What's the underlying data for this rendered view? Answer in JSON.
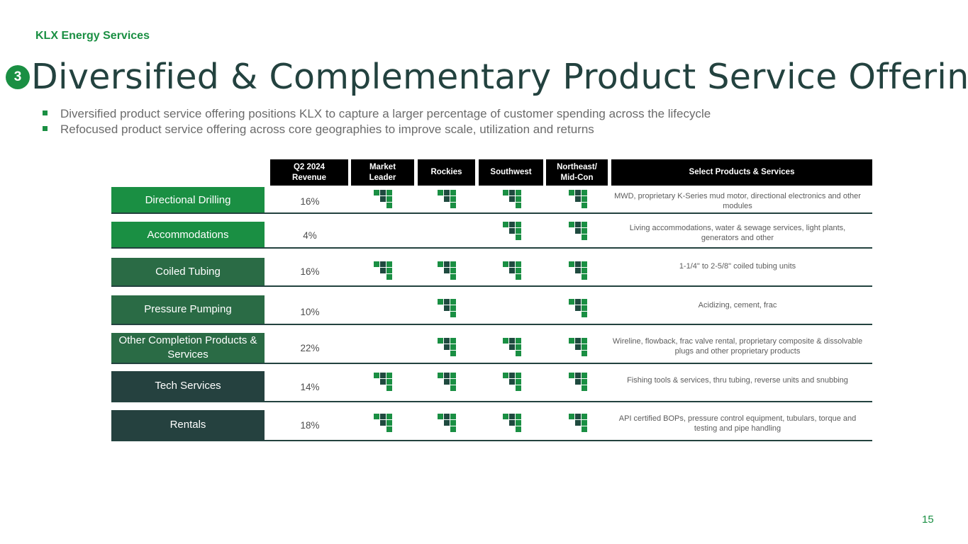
{
  "header": {
    "brand": "KLX Energy Services",
    "section_number": "3",
    "title": "Diversified & Complementary Product Service Offering"
  },
  "bullets": [
    "Diversified product service offering positions KLX to capture a larger percentage of customer spending across the lifecycle",
    "Refocused product service offering across core geographies to improve scale, utilization and returns"
  ],
  "table": {
    "columns": {
      "revenue": "Q2 2024\nRevenue",
      "market_leader": "Market\nLeader",
      "rockies": "Rockies",
      "southwest": "Southwest",
      "northeast": "Northeast/\nMid-Con",
      "products": "Select Products & Services"
    },
    "rows": [
      {
        "label": "Directional Drilling",
        "color": "#1a8f43",
        "revenue": "16%",
        "market_leader": true,
        "rockies": true,
        "southwest": true,
        "northeast": true,
        "products": "MWD, proprietary K-Series mud motor, directional electronics and other modules"
      },
      {
        "label": "Accommodations",
        "color": "#1a8f43",
        "revenue": "4%",
        "market_leader": false,
        "rockies": false,
        "southwest": true,
        "northeast": true,
        "products": "Living accommodations, water & sewage services, light plants, generators and other"
      },
      {
        "label": "Coiled Tubing",
        "color": "#2a6b45",
        "revenue": "16%",
        "market_leader": true,
        "rockies": true,
        "southwest": true,
        "northeast": true,
        "products": "1-1/4\" to 2-5/8\" coiled tubing units"
      },
      {
        "label": "Pressure Pumping",
        "color": "#2a6b45",
        "revenue": "10%",
        "market_leader": false,
        "rockies": true,
        "southwest": false,
        "northeast": true,
        "products": "Acidizing, cement, frac"
      },
      {
        "label": "Other Completion Products & Services",
        "color": "#2a6b45",
        "revenue": "22%",
        "market_leader": false,
        "rockies": true,
        "southwest": true,
        "northeast": true,
        "products": "Wireline, flowback, frac valve rental, proprietary composite & dissolvable plugs  and other proprietary products"
      },
      {
        "label": "Tech Services",
        "color": "#25413f",
        "revenue": "14%",
        "market_leader": true,
        "rockies": true,
        "southwest": true,
        "northeast": true,
        "products": "Fishing tools & services, thru tubing, reverse units and snubbing"
      },
      {
        "label": "Rentals",
        "color": "#25413f",
        "revenue": "18%",
        "market_leader": true,
        "rockies": true,
        "southwest": true,
        "northeast": true,
        "products": "API certified BOPs, pressure control equipment, tubulars, torque and testing and pipe handling"
      }
    ]
  },
  "icons": {
    "mark": "klx-logo-mark-icon",
    "bullet": "square-bullet-icon"
  },
  "colors": {
    "accent": "#1a8f43",
    "title": "#23423f"
  },
  "footer": {
    "page_number": "15"
  }
}
